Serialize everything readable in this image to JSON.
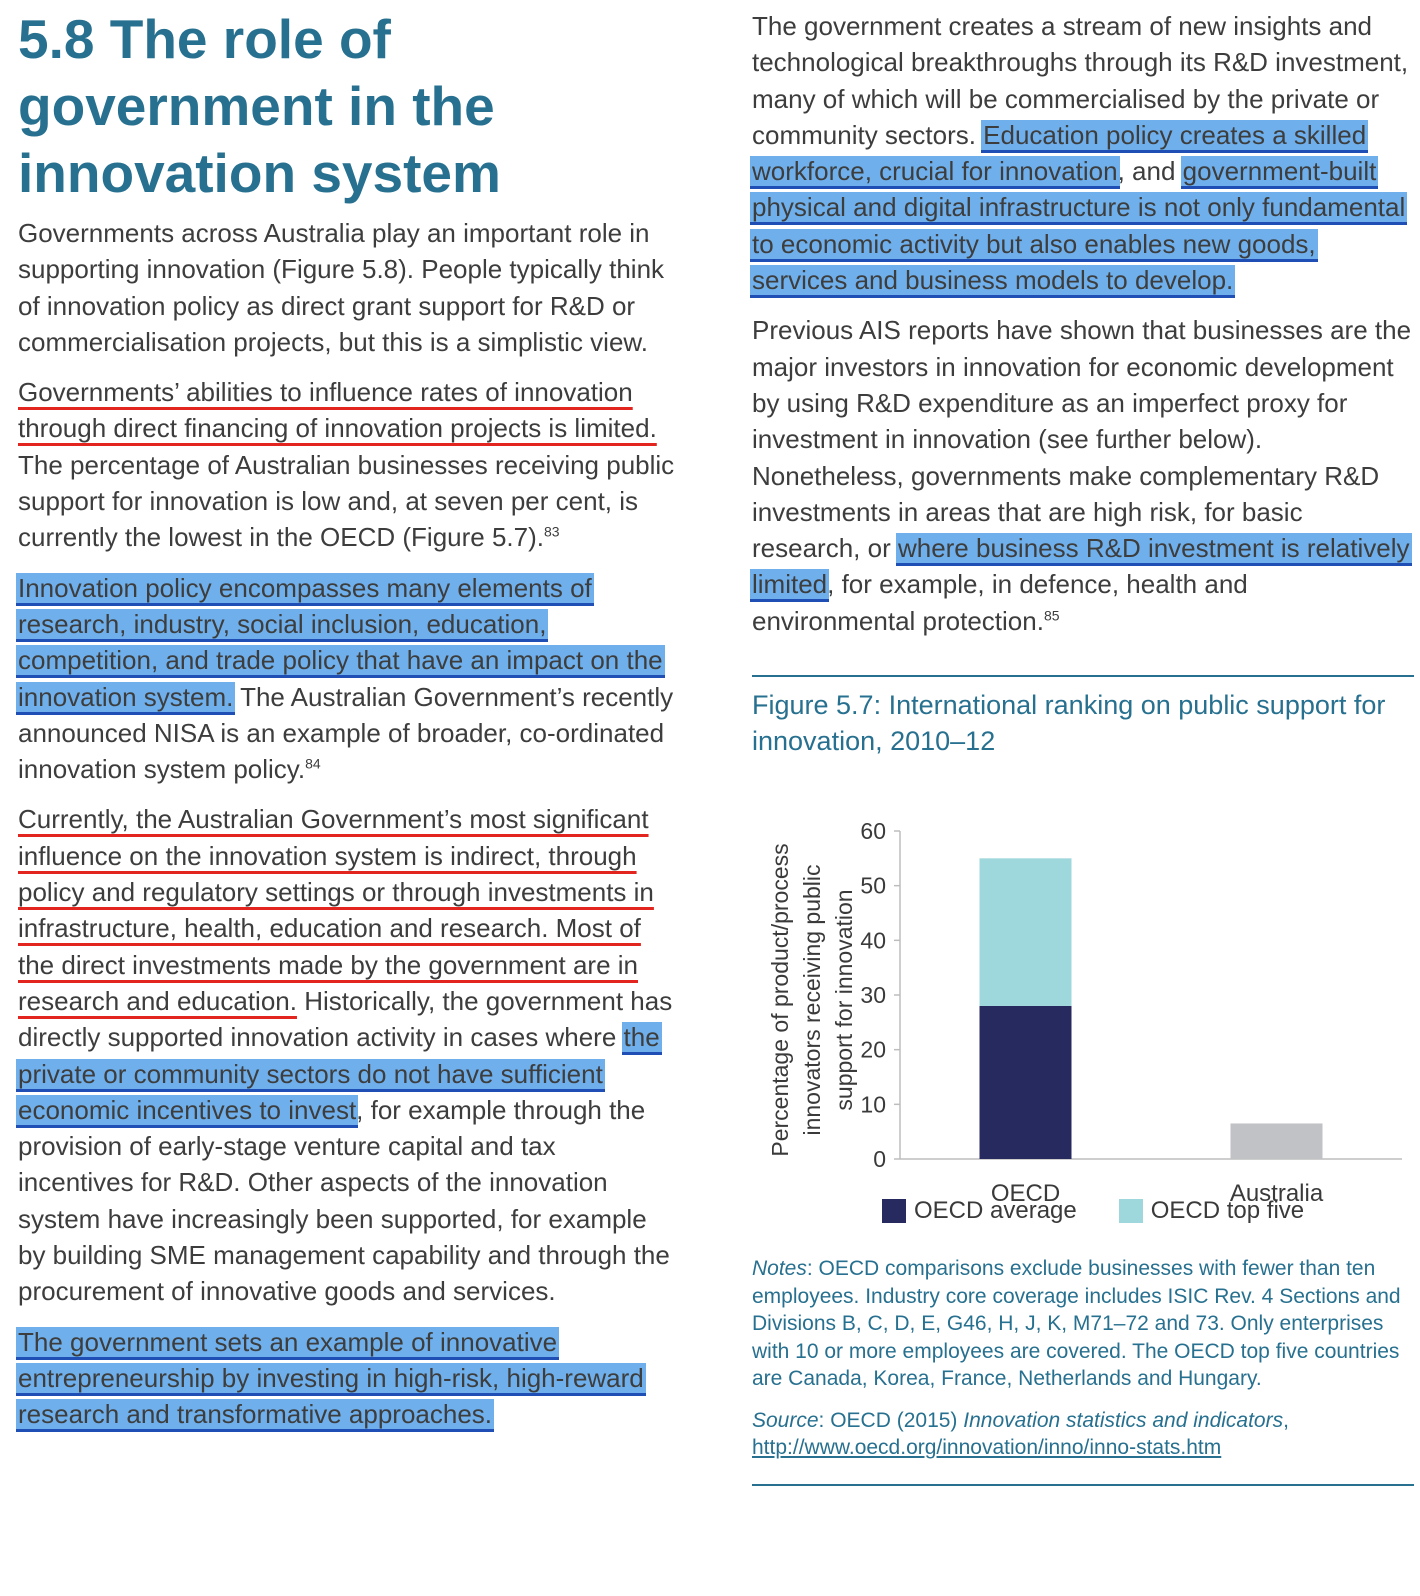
{
  "heading": "5.8 The role of government in the innovation system",
  "left": {
    "p1": "Governments across Australia play an important role in supporting innovation (Figure 5.8). People typically think of innovation policy as direct grant support for R&D or commercialisation projects, but this is a simplistic view.",
    "p2_underline": "Governments’ abilities to influence rates of innovation through direct financing of innovation projects is limited.",
    "p2_rest": " The percentage of Australian businesses receiving public support for innovation is low and, at seven per cent, is currently the lowest in the OECD (Figure 5.7).",
    "p2_sup": "83",
    "p3_highlight": "Innovation policy encompasses many elements of research, industry, social inclusion, education, competition, and trade policy that have an impact on the innovation system.",
    "p3_rest": " The Australian Government’s recently announced NISA is an example of broader, co-ordinated innovation system policy.",
    "p3_sup": "84",
    "p4_underline": "Currently, the Australian Government’s most significant influence on the innovation system is indirect, through policy and regulatory settings or through investments in infrastructure, health, education and research. Most of the direct investments made by the government are in research and education.",
    "p4_mid": " Historically, the government has directly supported innovation activity in cases where ",
    "p4_highlight": "the private or community sectors do not have sufficient economic incentives to invest",
    "p4_rest": ", for example through the provision of early-stage venture capital and tax incentives for R&D. Other aspects of the innovation system have increasingly been supported, for example by building SME management capability and through the procurement of innovative goods and services.",
    "p5_highlight": "The government sets an example of innovative entrepreneurship by investing in high-risk, high-reward research and transformative approaches."
  },
  "right": {
    "p1_start": "The government creates a stream of new insights and technological breakthroughs through its R&D investment, many of which will be commercialised by the private or community sectors. ",
    "p1_hl1": "Education policy creates a skilled workforce, crucial for innovation",
    "p1_mid": ", and ",
    "p1_hl2": "government-built physical and digital infrastructure is not only fundamental to economic activity but also enables new goods, services and business models to develop.",
    "p2_start": "Previous AIS reports have shown that businesses are the major investors in innovation for economic development by using R&D expenditure as an imperfect proxy for investment in innovation (see further below). Nonetheless, governments make complementary R&D investments in areas that are high risk, for basic research, or ",
    "p2_highlight": "where business R&D investment is relatively limited",
    "p2_rest": ", for example, in defence, health and environmental protection.",
    "p2_sup": "85",
    "figure_title": "Figure 5.7: International ranking on public support for innovation, 2010–12",
    "notes_label": "Notes",
    "notes_text": ": OECD comparisons exclude businesses with fewer than ten employees. Industry core coverage includes ISIC Rev. 4 Sections and Divisions B, C, D, E, G46, H, J, K, M71–72 and 73. Only enterprises with 10 or more employees are covered. The OECD top five countries are Canada, Korea, France, Netherlands and Hungary.",
    "source_label": "Source",
    "source_text": ": OECD (2015) ",
    "source_title": "Innovation statistics and indicators",
    "source_comma": ",",
    "source_url": "http://www.oecd.org/innovation/inno/inno-stats.htm"
  },
  "chart_data": {
    "type": "bar",
    "stacked": true,
    "title": "Figure 5.7: International ranking on public support for innovation, 2010–12",
    "categories": [
      "OECD",
      "Australia"
    ],
    "series": [
      {
        "name": "OECD average",
        "color": "#272a5e",
        "values": [
          28,
          null
        ]
      },
      {
        "name": "OECD top five",
        "color": "#9ed7dc",
        "values": [
          27,
          null
        ]
      },
      {
        "name": "Australia",
        "color": "#c0c2c6",
        "values": [
          null,
          6.5
        ]
      }
    ],
    "legend": [
      {
        "label": "OECD average",
        "color": "#272a5e"
      },
      {
        "label": "OECD top five",
        "color": "#9ed7dc"
      }
    ],
    "ylabel_lines": [
      "Percentage of product/process",
      "innovators receiving public",
      "support for innovation"
    ],
    "yticks": [
      0,
      10,
      20,
      30,
      40,
      50,
      60
    ],
    "ylim": [
      0,
      60
    ],
    "legend_position": "bottom"
  }
}
